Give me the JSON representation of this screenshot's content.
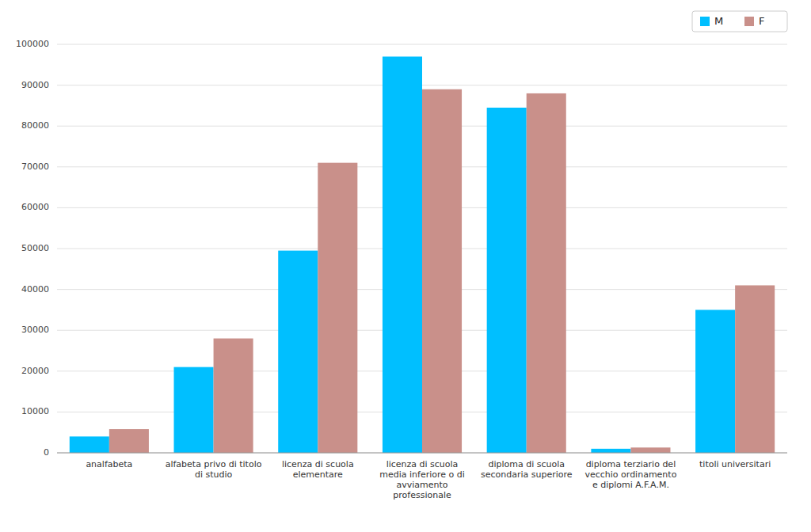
{
  "chart_data": {
    "type": "bar",
    "categories": [
      "analfabeta",
      "alfabeta privo di titolo\ndi studio",
      "licenza di scuola\nelementare",
      "licenza di scuola\nmedia inferiore o di\navviamento\nprofessionale",
      "diploma di scuola\nsecondaria superiore",
      "diploma terziario del\nvecchio ordinamento\ne diplomi A.F.A.M.",
      "titoli universitari"
    ],
    "series": [
      {
        "name": "M",
        "color": "#00BFFF",
        "values": [
          4000,
          21000,
          49500,
          97000,
          84500,
          1000,
          35000
        ]
      },
      {
        "name": "F",
        "color": "#C9908A",
        "values": [
          5800,
          28000,
          71000,
          89000,
          88000,
          1300,
          41000
        ]
      }
    ],
    "ylim": [
      0,
      100000
    ],
    "yticks": [
      0,
      10000,
      20000,
      30000,
      40000,
      50000,
      60000,
      70000,
      80000,
      90000,
      100000
    ],
    "grid": true,
    "legend": "upper right"
  }
}
